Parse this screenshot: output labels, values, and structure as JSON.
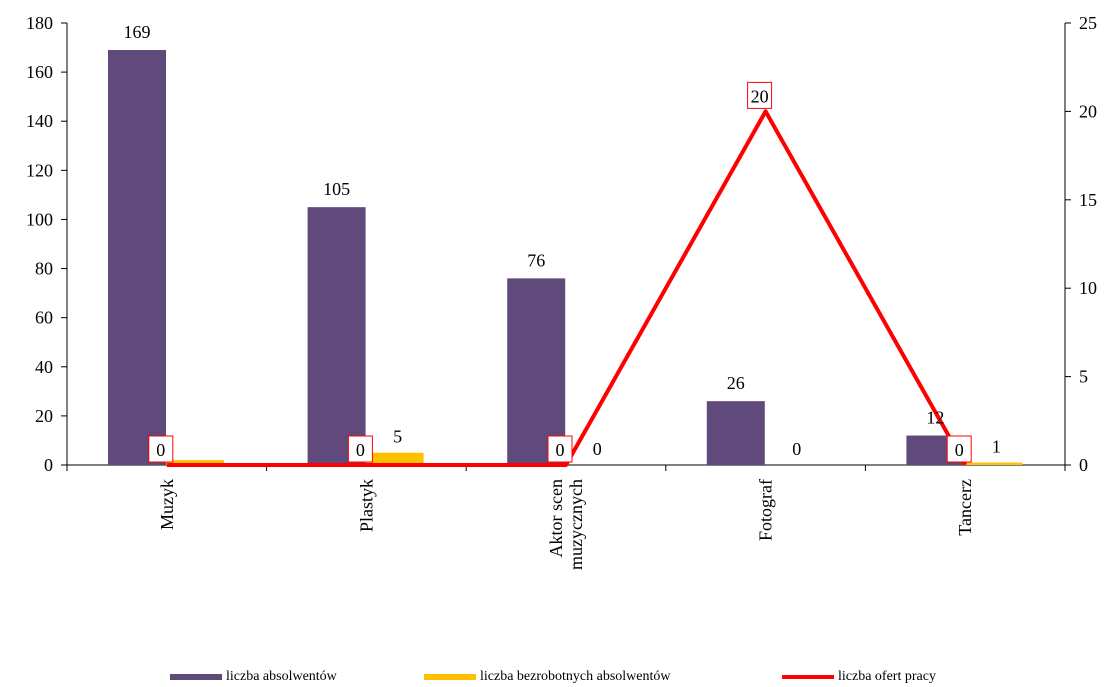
{
  "chart_data": {
    "type": "bar",
    "categories": [
      "Muzyk",
      "Plastyk",
      "Aktor scen muzycznych",
      "Fotograf",
      "Tancerz"
    ],
    "category_lines": [
      [
        "Muzyk"
      ],
      [
        "Plastyk"
      ],
      [
        "Aktor scen",
        "muzycznych"
      ],
      [
        "Fotograf"
      ],
      [
        "Tancerz"
      ]
    ],
    "series": [
      {
        "name": "liczba absolwentów",
        "kind": "bar",
        "axis": "left",
        "color": "#604A7B",
        "values": [
          169,
          105,
          76,
          26,
          12
        ]
      },
      {
        "name": "liczba bezrobotnych absolwentów",
        "kind": "bar",
        "axis": "left",
        "color": "#FFC000",
        "values": [
          2,
          5,
          0,
          0,
          1
        ]
      },
      {
        "name": "liczba ofert pracy",
        "kind": "line",
        "axis": "right",
        "color": "#FF0000",
        "values": [
          0,
          0,
          0,
          20,
          0
        ]
      }
    ],
    "data_labels": {
      "bars_primary": [
        "169",
        "105",
        "76",
        "26",
        "12"
      ],
      "bars_secondary": [
        "",
        "5",
        "0",
        "0",
        "1"
      ],
      "line": [
        "0",
        "0",
        "0",
        "20",
        "0"
      ]
    },
    "left_axis": {
      "min": 0,
      "max": 180,
      "step": 20,
      "ticks": [
        "0",
        "20",
        "40",
        "60",
        "80",
        "100",
        "120",
        "140",
        "160",
        "180"
      ]
    },
    "right_axis": {
      "min": 0,
      "max": 25,
      "step": 5,
      "ticks": [
        "0",
        "5",
        "10",
        "15",
        "20",
        "25"
      ]
    },
    "grid": false,
    "legend_position": "bottom"
  }
}
